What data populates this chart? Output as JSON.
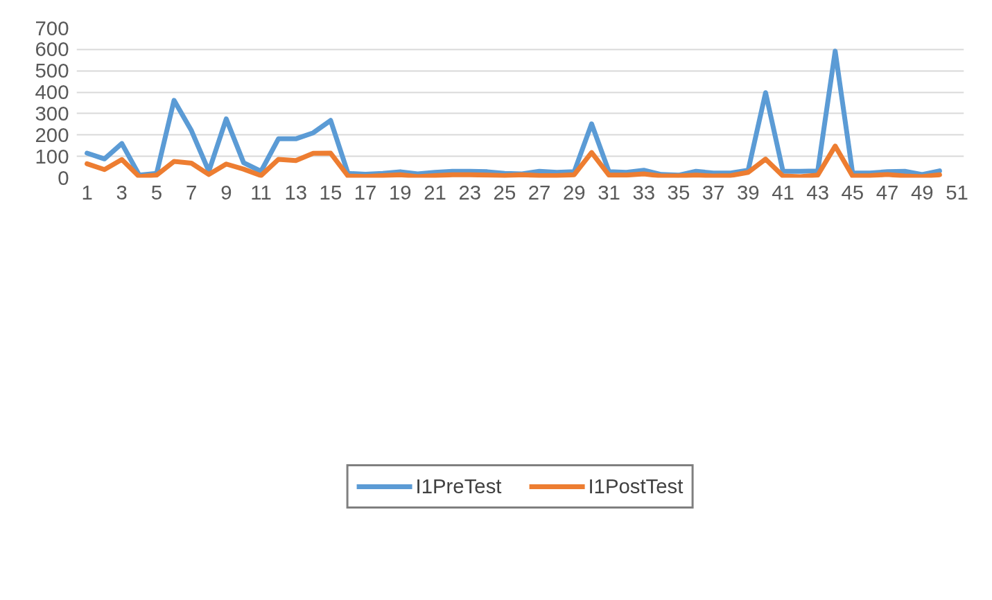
{
  "chart_data": {
    "type": "line",
    "x": [
      1,
      2,
      3,
      4,
      5,
      6,
      7,
      8,
      9,
      10,
      11,
      12,
      13,
      14,
      15,
      16,
      17,
      18,
      19,
      20,
      21,
      22,
      23,
      24,
      25,
      26,
      27,
      28,
      29,
      30,
      31,
      32,
      33,
      34,
      35,
      36,
      37,
      38,
      39,
      40,
      41,
      42,
      43,
      44,
      45,
      46,
      47,
      48,
      49,
      50
    ],
    "series": [
      {
        "name": "I1PreTest",
        "color": "#5b9bd5",
        "values": [
          115,
          88,
          160,
          12,
          20,
          362,
          220,
          30,
          275,
          70,
          30,
          182,
          182,
          210,
          268,
          20,
          16,
          20,
          28,
          18,
          25,
          30,
          30,
          28,
          20,
          18,
          30,
          25,
          28,
          252,
          28,
          25,
          35,
          15,
          12,
          30,
          22,
          22,
          35,
          398,
          30,
          30,
          32,
          592,
          22,
          22,
          28,
          30,
          15,
          32
        ]
      },
      {
        "name": "I1PostTest",
        "color": "#ed7d31",
        "values": [
          65,
          38,
          85,
          5,
          12,
          76,
          68,
          15,
          64,
          40,
          10,
          86,
          80,
          114,
          115,
          8,
          6,
          10,
          14,
          5,
          10,
          14,
          14,
          12,
          10,
          14,
          10,
          10,
          14,
          118,
          12,
          12,
          18,
          8,
          8,
          12,
          8,
          10,
          25,
          87,
          8,
          5,
          12,
          148,
          8,
          10,
          15,
          8,
          5,
          14
        ]
      }
    ],
    "xlim": [
      0.4,
      51.4
    ],
    "xticks": [
      1,
      3,
      5,
      7,
      9,
      11,
      13,
      15,
      17,
      19,
      21,
      23,
      25,
      27,
      29,
      31,
      33,
      35,
      37,
      39,
      41,
      43,
      45,
      47,
      49,
      51
    ],
    "ylim": [
      0,
      700
    ],
    "yticks": [
      0,
      100,
      200,
      300,
      400,
      500,
      600,
      700
    ],
    "grid": "y",
    "legend": "bottom",
    "marker": "none",
    "line_style": "solid"
  }
}
